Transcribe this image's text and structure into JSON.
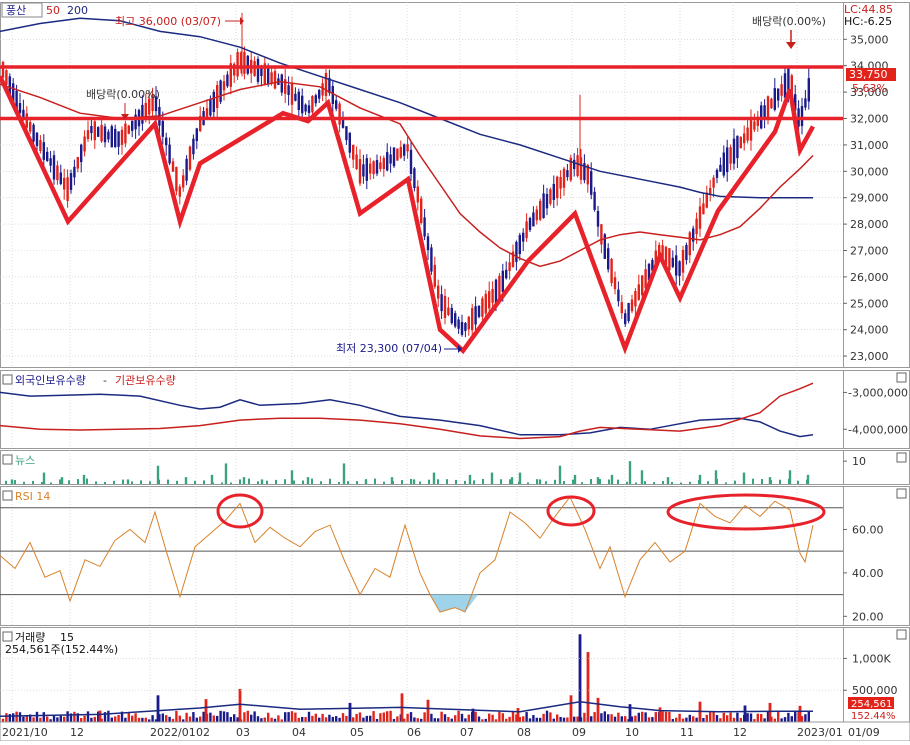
{
  "header": {
    "stock_name": "풍산",
    "ma_periods": [
      "50",
      "200"
    ],
    "lc_label": "LC:44.85",
    "hc_label": "HC:-6.25"
  },
  "colors": {
    "up_candle": "#e2231a",
    "down_candle": "#1a1a8c",
    "trend_red": "#e8222a",
    "ma50": "#c8201e",
    "ma200": "#1b2a80",
    "rsi": "#d9822b",
    "news": "#3aa37c",
    "grid": "#c8c8c8",
    "axis_text": "#333333",
    "price_label_bg": "#e2231a"
  },
  "chart_data": [
    {
      "id": "price",
      "type": "candlestick",
      "y_axis_ticks": [
        "35,000",
        "34,000",
        "33,000",
        "32,000",
        "31,000",
        "30,000",
        "29,000",
        "28,000",
        "27,000",
        "26,000",
        "25,000",
        "24,000",
        "23,000"
      ],
      "ylim": [
        22700,
        36300
      ],
      "last_price_label": "33,750",
      "last_change_label": "5.63%",
      "annotations": {
        "high": "최고 36,000 (03/07)",
        "low": "최저 23,300 (07/04)",
        "dividend_left": "배당락(0.00%)",
        "dividend_right": "배당락(0.00%)"
      },
      "horizontal_levels": [
        33950,
        32000
      ],
      "trend_line_points": [
        [
          0,
          33600
        ],
        [
          68,
          28100
        ],
        [
          155,
          31800
        ],
        [
          180,
          28100
        ],
        [
          200,
          30300
        ],
        [
          283,
          32200
        ],
        [
          308,
          31900
        ],
        [
          328,
          32600
        ],
        [
          360,
          28400
        ],
        [
          408,
          29700
        ],
        [
          440,
          24000
        ],
        [
          463,
          23200
        ],
        [
          528,
          26600
        ],
        [
          575,
          28400
        ],
        [
          625,
          23300
        ],
        [
          660,
          26800
        ],
        [
          680,
          25200
        ],
        [
          718,
          28500
        ],
        [
          775,
          31500
        ],
        [
          790,
          33100
        ],
        [
          800,
          30800
        ],
        [
          813,
          31700
        ]
      ],
      "ma50": [
        [
          0,
          33300
        ],
        [
          40,
          32800
        ],
        [
          80,
          32200
        ],
        [
          120,
          32000
        ],
        [
          160,
          32100
        ],
        [
          200,
          32600
        ],
        [
          240,
          33100
        ],
        [
          280,
          33400
        ],
        [
          320,
          33200
        ],
        [
          360,
          32400
        ],
        [
          400,
          31800
        ],
        [
          420,
          30600
        ],
        [
          440,
          29500
        ],
        [
          460,
          28400
        ],
        [
          480,
          27700
        ],
        [
          500,
          27100
        ],
        [
          520,
          26700
        ],
        [
          540,
          26400
        ],
        [
          560,
          26600
        ],
        [
          580,
          27000
        ],
        [
          600,
          27400
        ],
        [
          620,
          27600
        ],
        [
          640,
          27700
        ],
        [
          660,
          27600
        ],
        [
          680,
          27500
        ],
        [
          700,
          27400
        ],
        [
          720,
          27600
        ],
        [
          740,
          27900
        ],
        [
          760,
          28600
        ],
        [
          780,
          29400
        ],
        [
          800,
          30100
        ],
        [
          813,
          30600
        ]
      ],
      "ma200": [
        [
          0,
          35300
        ],
        [
          40,
          35600
        ],
        [
          80,
          35800
        ],
        [
          120,
          35700
        ],
        [
          160,
          35300
        ],
        [
          200,
          35100
        ],
        [
          240,
          34700
        ],
        [
          280,
          34100
        ],
        [
          320,
          33600
        ],
        [
          360,
          33100
        ],
        [
          400,
          32600
        ],
        [
          440,
          32000
        ],
        [
          480,
          31400
        ],
        [
          520,
          31000
        ],
        [
          560,
          30500
        ],
        [
          600,
          30000
        ],
        [
          640,
          29700
        ],
        [
          680,
          29400
        ],
        [
          700,
          29200
        ],
        [
          720,
          29050
        ],
        [
          760,
          29000
        ],
        [
          813,
          29000
        ]
      ],
      "x_axis_labels": [
        "2021/10",
        "12",
        "2022/01",
        "02",
        "03",
        "04",
        "05",
        "06",
        "07",
        "08",
        "09",
        "10",
        "11",
        "12",
        "2023/01",
        "01/09"
      ]
    },
    {
      "id": "holdings",
      "type": "line",
      "y_axis_ticks": [
        "-3,000,000",
        "-4,000,000"
      ],
      "ylim": [
        -4400000,
        -2500000
      ],
      "series": [
        {
          "name": "외국인보유수량",
          "color": "#1b2a80",
          "points": [
            [
              0,
              -3000000
            ],
            [
              30,
              -3100000
            ],
            [
              60,
              -3080000
            ],
            [
              100,
              -3050000
            ],
            [
              140,
              -3100000
            ],
            [
              180,
              -3350000
            ],
            [
              200,
              -3450000
            ],
            [
              220,
              -3400000
            ],
            [
              240,
              -3200000
            ],
            [
              260,
              -3350000
            ],
            [
              300,
              -3300000
            ],
            [
              330,
              -3200000
            ],
            [
              360,
              -3350000
            ],
            [
              400,
              -3650000
            ],
            [
              440,
              -3750000
            ],
            [
              480,
              -3900000
            ],
            [
              520,
              -4150000
            ],
            [
              560,
              -4150000
            ],
            [
              590,
              -4100000
            ],
            [
              620,
              -3950000
            ],
            [
              650,
              -4000000
            ],
            [
              680,
              -3850000
            ],
            [
              700,
              -3750000
            ],
            [
              740,
              -3700000
            ],
            [
              760,
              -3800000
            ],
            [
              780,
              -4050000
            ],
            [
              800,
              -4200000
            ],
            [
              813,
              -4150000
            ]
          ]
        },
        {
          "name": "기관보유수량",
          "color": "#c8201e",
          "points": [
            [
              0,
              -3900000
            ],
            [
              40,
              -4000000
            ],
            [
              80,
              -4020000
            ],
            [
              120,
              -4000000
            ],
            [
              160,
              -3980000
            ],
            [
              200,
              -3900000
            ],
            [
              240,
              -3750000
            ],
            [
              280,
              -3700000
            ],
            [
              320,
              -3700000
            ],
            [
              360,
              -3750000
            ],
            [
              400,
              -3850000
            ],
            [
              440,
              -4000000
            ],
            [
              480,
              -4180000
            ],
            [
              520,
              -4250000
            ],
            [
              560,
              -4200000
            ],
            [
              580,
              -4050000
            ],
            [
              600,
              -3950000
            ],
            [
              640,
              -4000000
            ],
            [
              680,
              -4050000
            ],
            [
              720,
              -3900000
            ],
            [
              760,
              -3550000
            ],
            [
              780,
              -3100000
            ],
            [
              800,
              -2900000
            ],
            [
              813,
              -2750000
            ]
          ]
        }
      ]
    },
    {
      "id": "news",
      "type": "bar",
      "name": "뉴스",
      "y_axis_ticks": [
        "10"
      ],
      "ylim": [
        0,
        14
      ],
      "spike_x": [
        12,
        44,
        62,
        84,
        128,
        158,
        186,
        212,
        226,
        244,
        262,
        292,
        308,
        344,
        366,
        392,
        414,
        434,
        470,
        492,
        512,
        520,
        540,
        560,
        575,
        598,
        612,
        630,
        642,
        668,
        700,
        716,
        744,
        770,
        790,
        808
      ],
      "spike_values": [
        2,
        5,
        3,
        4,
        2,
        8,
        3,
        4,
        9,
        3,
        2,
        6,
        3,
        9,
        2,
        3,
        2,
        5,
        4,
        5,
        3,
        5,
        2,
        8,
        4,
        3,
        4,
        10,
        6,
        3,
        4,
        6,
        5,
        3,
        6,
        4
      ]
    },
    {
      "id": "rsi",
      "type": "line",
      "name": "RSI 14",
      "y_axis_ticks": [
        "60.00",
        "40.00",
        "20.00"
      ],
      "ylim": [
        16,
        80
      ],
      "levels": [
        70,
        50,
        30
      ],
      "points": [
        [
          0,
          48
        ],
        [
          15,
          42
        ],
        [
          30,
          54
        ],
        [
          45,
          38
        ],
        [
          60,
          41
        ],
        [
          70,
          27
        ],
        [
          85,
          46
        ],
        [
          100,
          43
        ],
        [
          115,
          55
        ],
        [
          130,
          60
        ],
        [
          145,
          54
        ],
        [
          155,
          68
        ],
        [
          165,
          52
        ],
        [
          180,
          29
        ],
        [
          195,
          52
        ],
        [
          210,
          58
        ],
        [
          225,
          64
        ],
        [
          240,
          72
        ],
        [
          255,
          54
        ],
        [
          270,
          61
        ],
        [
          285,
          56
        ],
        [
          300,
          52
        ],
        [
          315,
          59
        ],
        [
          330,
          62
        ],
        [
          345,
          45
        ],
        [
          360,
          30
        ],
        [
          375,
          42
        ],
        [
          390,
          38
        ],
        [
          405,
          62
        ],
        [
          420,
          40
        ],
        [
          430,
          30
        ],
        [
          440,
          22
        ],
        [
          455,
          24
        ],
        [
          465,
          22
        ],
        [
          480,
          40
        ],
        [
          495,
          46
        ],
        [
          510,
          68
        ],
        [
          525,
          63
        ],
        [
          540,
          56
        ],
        [
          555,
          66
        ],
        [
          570,
          75
        ],
        [
          585,
          60
        ],
        [
          600,
          42
        ],
        [
          610,
          52
        ],
        [
          625,
          29
        ],
        [
          640,
          46
        ],
        [
          655,
          54
        ],
        [
          670,
          45
        ],
        [
          685,
          50
        ],
        [
          700,
          72
        ],
        [
          715,
          66
        ],
        [
          730,
          63
        ],
        [
          745,
          71
        ],
        [
          760,
          66
        ],
        [
          775,
          73
        ],
        [
          790,
          69
        ],
        [
          800,
          49
        ],
        [
          805,
          45
        ],
        [
          813,
          62
        ]
      ]
    },
    {
      "id": "volume",
      "type": "bar",
      "name": "거래량",
      "period": "15",
      "sub_label": "254,561주(152.44%)",
      "y_axis_ticks": [
        "1,000K",
        "500,000"
      ],
      "ylim": [
        0,
        1400000
      ],
      "last_value_label": "254,561",
      "last_ratio_label": "152.44%",
      "spikes": [
        [
          100,
          180000
        ],
        [
          158,
          420000
        ],
        [
          206,
          360000
        ],
        [
          240,
          520000
        ],
        [
          350,
          300000
        ],
        [
          402,
          450000
        ],
        [
          428,
          350000
        ],
        [
          473,
          210000
        ],
        [
          518,
          220000
        ],
        [
          571,
          420000
        ],
        [
          580,
          1380000
        ],
        [
          588,
          1100000
        ],
        [
          598,
          380000
        ],
        [
          630,
          280000
        ],
        [
          660,
          230000
        ],
        [
          700,
          320000
        ],
        [
          745,
          260000
        ],
        [
          770,
          300000
        ],
        [
          800,
          254561
        ]
      ],
      "ma_points": [
        [
          0,
          90000
        ],
        [
          100,
          120000
        ],
        [
          200,
          220000
        ],
        [
          240,
          280000
        ],
        [
          300,
          200000
        ],
        [
          400,
          230000
        ],
        [
          450,
          200000
        ],
        [
          520,
          160000
        ],
        [
          580,
          320000
        ],
        [
          620,
          240000
        ],
        [
          660,
          180000
        ],
        [
          720,
          160000
        ],
        [
          780,
          170000
        ],
        [
          813,
          170000
        ]
      ]
    }
  ]
}
